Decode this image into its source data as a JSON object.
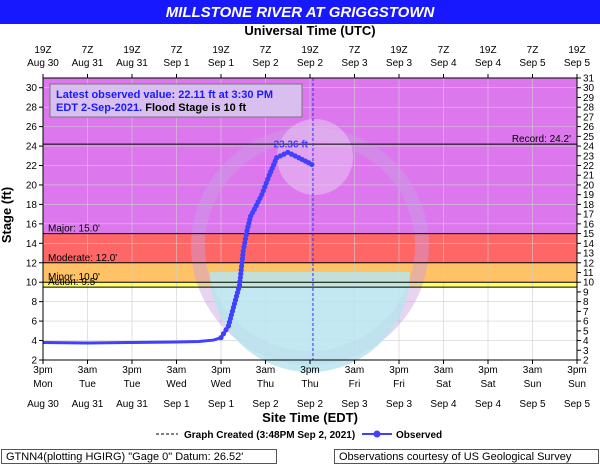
{
  "chart_data": {
    "type": "line",
    "title": "MILLSTONE RIVER AT GRIGGSTOWN",
    "top_axis_title": "Universal Time (UTC)",
    "xlabel": "Site Time (EDT)",
    "ylabel": "Stage (ft)",
    "ylim": [
      2,
      31
    ],
    "y_ticks": [
      2,
      4,
      6,
      8,
      10,
      12,
      14,
      16,
      18,
      20,
      22,
      24,
      26,
      28,
      30
    ],
    "y_ticks_right": [
      2,
      3,
      4,
      5,
      6,
      7,
      8,
      9,
      10,
      11,
      12,
      13,
      14,
      15,
      16,
      17,
      18,
      19,
      20,
      21,
      22,
      23,
      24,
      25,
      26,
      27,
      28,
      29,
      30,
      31
    ],
    "x_ticks_bottom": [
      {
        "time": "3pm",
        "date": "Mon",
        "date2": "Aug 30"
      },
      {
        "time": "3am",
        "date": "Tue",
        "date2": "Aug 31"
      },
      {
        "time": "3pm",
        "date": "Tue",
        "date2": "Aug 31"
      },
      {
        "time": "3am",
        "date": "Wed",
        "date2": "Sep 1"
      },
      {
        "time": "3pm",
        "date": "Wed",
        "date2": "Sep 1"
      },
      {
        "time": "3am",
        "date": "Thu",
        "date2": "Sep 2"
      },
      {
        "time": "3pm",
        "date": "Thu",
        "date2": "Sep 2"
      },
      {
        "time": "3am",
        "date": "Fri",
        "date2": "Sep 3"
      },
      {
        "time": "3pm",
        "date": "Fri",
        "date2": "Sep 3"
      },
      {
        "time": "3am",
        "date": "Sat",
        "date2": "Sep 4"
      },
      {
        "time": "3pm",
        "date": "Sat",
        "date2": "Sep 4"
      },
      {
        "time": "3am",
        "date": "Sun",
        "date2": "Sep 5"
      },
      {
        "time": "3pm",
        "date": "Sun",
        "date2": "Sep 5"
      }
    ],
    "x_ticks_top": [
      {
        "time": "19Z",
        "date": "Aug 30"
      },
      {
        "time": "7Z",
        "date": "Aug 31"
      },
      {
        "time": "19Z",
        "date": "Aug 31"
      },
      {
        "time": "7Z",
        "date": "Sep 1"
      },
      {
        "time": "19Z",
        "date": "Sep 1"
      },
      {
        "time": "7Z",
        "date": "Sep 2"
      },
      {
        "time": "19Z",
        "date": "Sep 2"
      },
      {
        "time": "7Z",
        "date": "Sep 3"
      },
      {
        "time": "19Z",
        "date": "Sep 3"
      },
      {
        "time": "7Z",
        "date": "Sep 4"
      },
      {
        "time": "19Z",
        "date": "Sep 4"
      },
      {
        "time": "7Z",
        "date": "Sep 5"
      },
      {
        "time": "19Z",
        "date": "Sep 5"
      }
    ],
    "bands": [
      {
        "from": 2,
        "to": 9.5,
        "color": "#ffffff"
      },
      {
        "from": 9.5,
        "to": 10,
        "color": "#ffff66"
      },
      {
        "from": 10,
        "to": 12,
        "color": "#ffc266"
      },
      {
        "from": 12,
        "to": 15,
        "color": "#ff6666"
      },
      {
        "from": 15,
        "to": 31,
        "color": "#dd77ee"
      }
    ],
    "thresholds": [
      {
        "label": "Record: 24.2'",
        "value": 24.2,
        "side": "right"
      },
      {
        "label": "Major: 15.0'",
        "value": 15,
        "side": "left"
      },
      {
        "label": "Moderate: 12.0'",
        "value": 12,
        "side": "left"
      },
      {
        "label": "Minor: 10.0'",
        "value": 10,
        "side": "left"
      },
      {
        "label": "Action: 9.5'",
        "value": 9.5,
        "side": "left"
      }
    ],
    "graph_created_time": "Sep 2 3:48 PM",
    "peak_label": "23.36 ft",
    "peak": {
      "x": "Sep 2 9:00 AM",
      "y": 23.36
    },
    "latest_observed": {
      "line1": "Latest observed value: 22.11 ft at 3:30 PM",
      "line2_date": "EDT 2-Sep-2021.",
      "line2_flood": " Flood Stage is 10 ft"
    },
    "series": [
      {
        "name": "Observed",
        "color": "#4040ff",
        "x": [
          "Aug 30 3:00 PM",
          "Aug 31 3:00 AM",
          "Aug 31 3:00 PM",
          "Sep 1 3:00 AM",
          "Sep 1 9:00 AM",
          "Sep 1 1:00 PM",
          "Sep 1 3:00 PM",
          "Sep 1 5:00 PM",
          "Sep 1 8:00 PM",
          "Sep 1 9:00 PM",
          "Sep 1 10:00 PM",
          "Sep 1 11:00 PM",
          "Sep 2 12:00 AM",
          "Sep 2 2:00 AM",
          "Sep 2 4:00 AM",
          "Sep 2 6:00 AM",
          "Sep 2 9:00 AM",
          "Sep 2 12:00 PM",
          "Sep 2 3:30 PM"
        ],
        "y": [
          3.8,
          3.75,
          3.8,
          3.85,
          3.9,
          4.05,
          4.3,
          5.5,
          9.7,
          13.2,
          15.3,
          16.8,
          17.5,
          19.0,
          21.0,
          22.8,
          23.36,
          22.8,
          22.11
        ]
      }
    ],
    "legend": {
      "created_label": "Graph Created",
      "created_text": "(3:48PM Sep 2, 2021)",
      "observed_label": "Observed"
    }
  },
  "footer": {
    "left": "GTNN4(plotting HGIRG) \"Gage 0\" Datum: 26.52'",
    "right": "Observations courtesy of US Geological Survey"
  }
}
